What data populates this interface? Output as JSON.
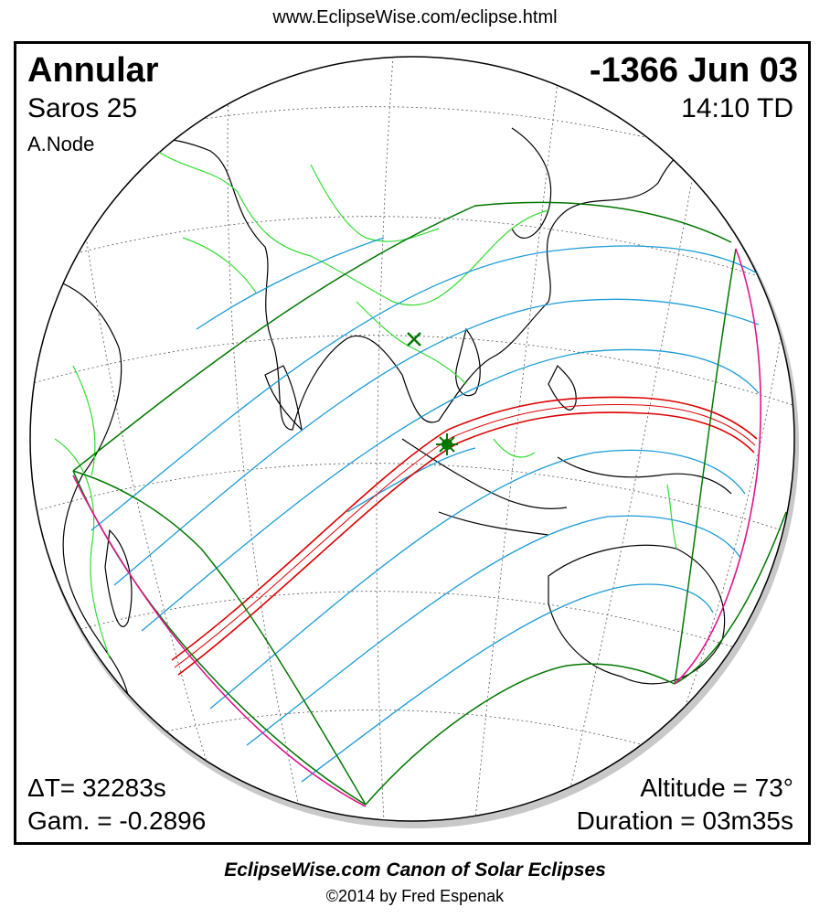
{
  "header": {
    "url": "www.EclipseWise.com/eclipse.html"
  },
  "eclipse": {
    "type": "Annular",
    "date": "-1366 Jun 03",
    "saros": "Saros  25",
    "time": "14:10 TD",
    "node": "A.Node",
    "delta_t": "ΔT=  32283s",
    "gamma": "Gam. = -0.2896",
    "altitude": "Altitude = 73°",
    "duration": "Duration = 03m35s"
  },
  "footer": {
    "canon": "EclipseWise.com Canon of Solar Eclipses",
    "copyright": "©2014 by Fred Espenak"
  },
  "colors": {
    "central_path": "#dd0000",
    "partial_limits": "#1a9bd8",
    "outer_limits": "#007700",
    "rise_set_curve": "#e0158c",
    "borders": "#33dd33",
    "coastlines": "#000000",
    "graticule": "#555555"
  },
  "markers": {
    "greatest_eclipse": "star",
    "greatest_duration": "x-mark"
  }
}
